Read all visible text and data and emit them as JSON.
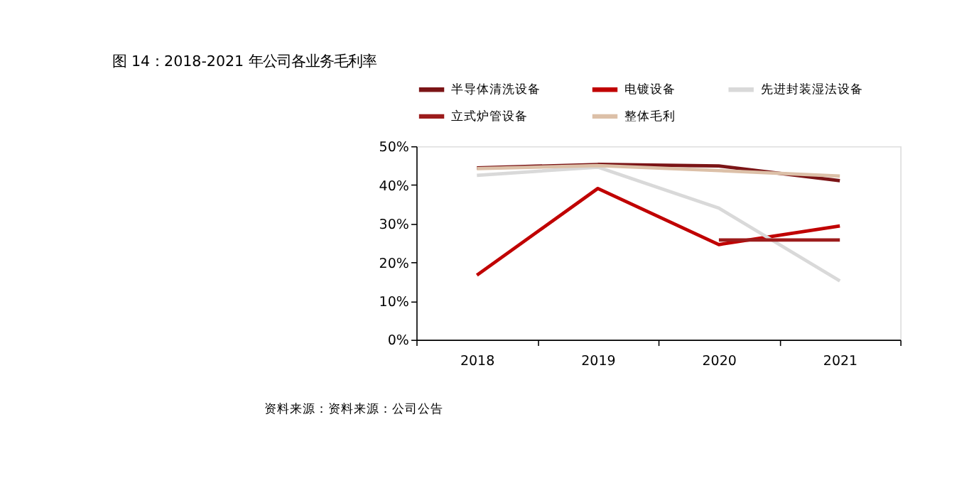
{
  "chart_data": {
    "type": "line",
    "title": "图 14：2018-2021 年公司各业务毛利率",
    "categories": [
      "2018",
      "2019",
      "2020",
      "2021"
    ],
    "series": [
      {
        "name": "半导体清洗设备",
        "color": "#7b1416",
        "values": [
          44.4,
          45.3,
          44.9,
          41.1
        ]
      },
      {
        "name": "电镀设备",
        "color": "#c00000",
        "values": [
          16.7,
          39.1,
          24.6,
          29.4
        ]
      },
      {
        "name": "先进封装湿法设备",
        "color": "#d9d9d9",
        "values": [
          42.5,
          44.6,
          34.0,
          15.2
        ]
      },
      {
        "name": "立式炉管设备",
        "color": "#9c1c1c",
        "values": [
          null,
          null,
          25.8,
          25.8
        ]
      },
      {
        "name": "整体毛利",
        "color": "#dcc0a8",
        "values": [
          44.2,
          45.0,
          43.7,
          42.3
        ]
      }
    ],
    "ylim": [
      0,
      50
    ],
    "yticks": [
      {
        "value": 0,
        "label": "0%"
      },
      {
        "value": 10,
        "label": "10%"
      },
      {
        "value": 20,
        "label": "20%"
      },
      {
        "value": 30,
        "label": "30%"
      },
      {
        "value": 40,
        "label": "40%"
      },
      {
        "value": 50,
        "label": "50%"
      }
    ],
    "grid": false,
    "legend": "top",
    "marker": "none",
    "line_style": "solid",
    "annotations": [
      "资料来源：资料来源：公司公告"
    ]
  }
}
